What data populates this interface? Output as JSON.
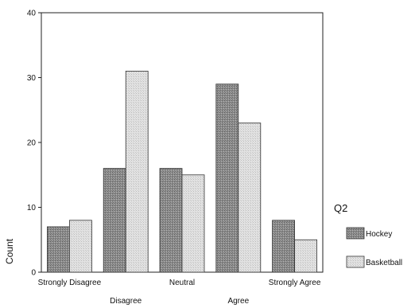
{
  "chart_data": {
    "type": "bar",
    "categories": [
      "Strongly Disagree",
      "Disagree",
      "Neutral",
      "Agree",
      "Strongly Agree"
    ],
    "series": [
      {
        "name": "Hockey",
        "values": [
          7,
          16,
          16,
          29,
          8
        ],
        "color": "#8f8f8f"
      },
      {
        "name": "Basketball",
        "values": [
          8,
          31,
          15,
          23,
          5
        ],
        "color": "#dedede"
      }
    ],
    "ylabel": "Count",
    "ylim": [
      0,
      40
    ],
    "yticks": [
      0,
      10,
      20,
      30,
      40
    ],
    "legend_title": "Q2",
    "legend_position": "right",
    "grid": false
  }
}
